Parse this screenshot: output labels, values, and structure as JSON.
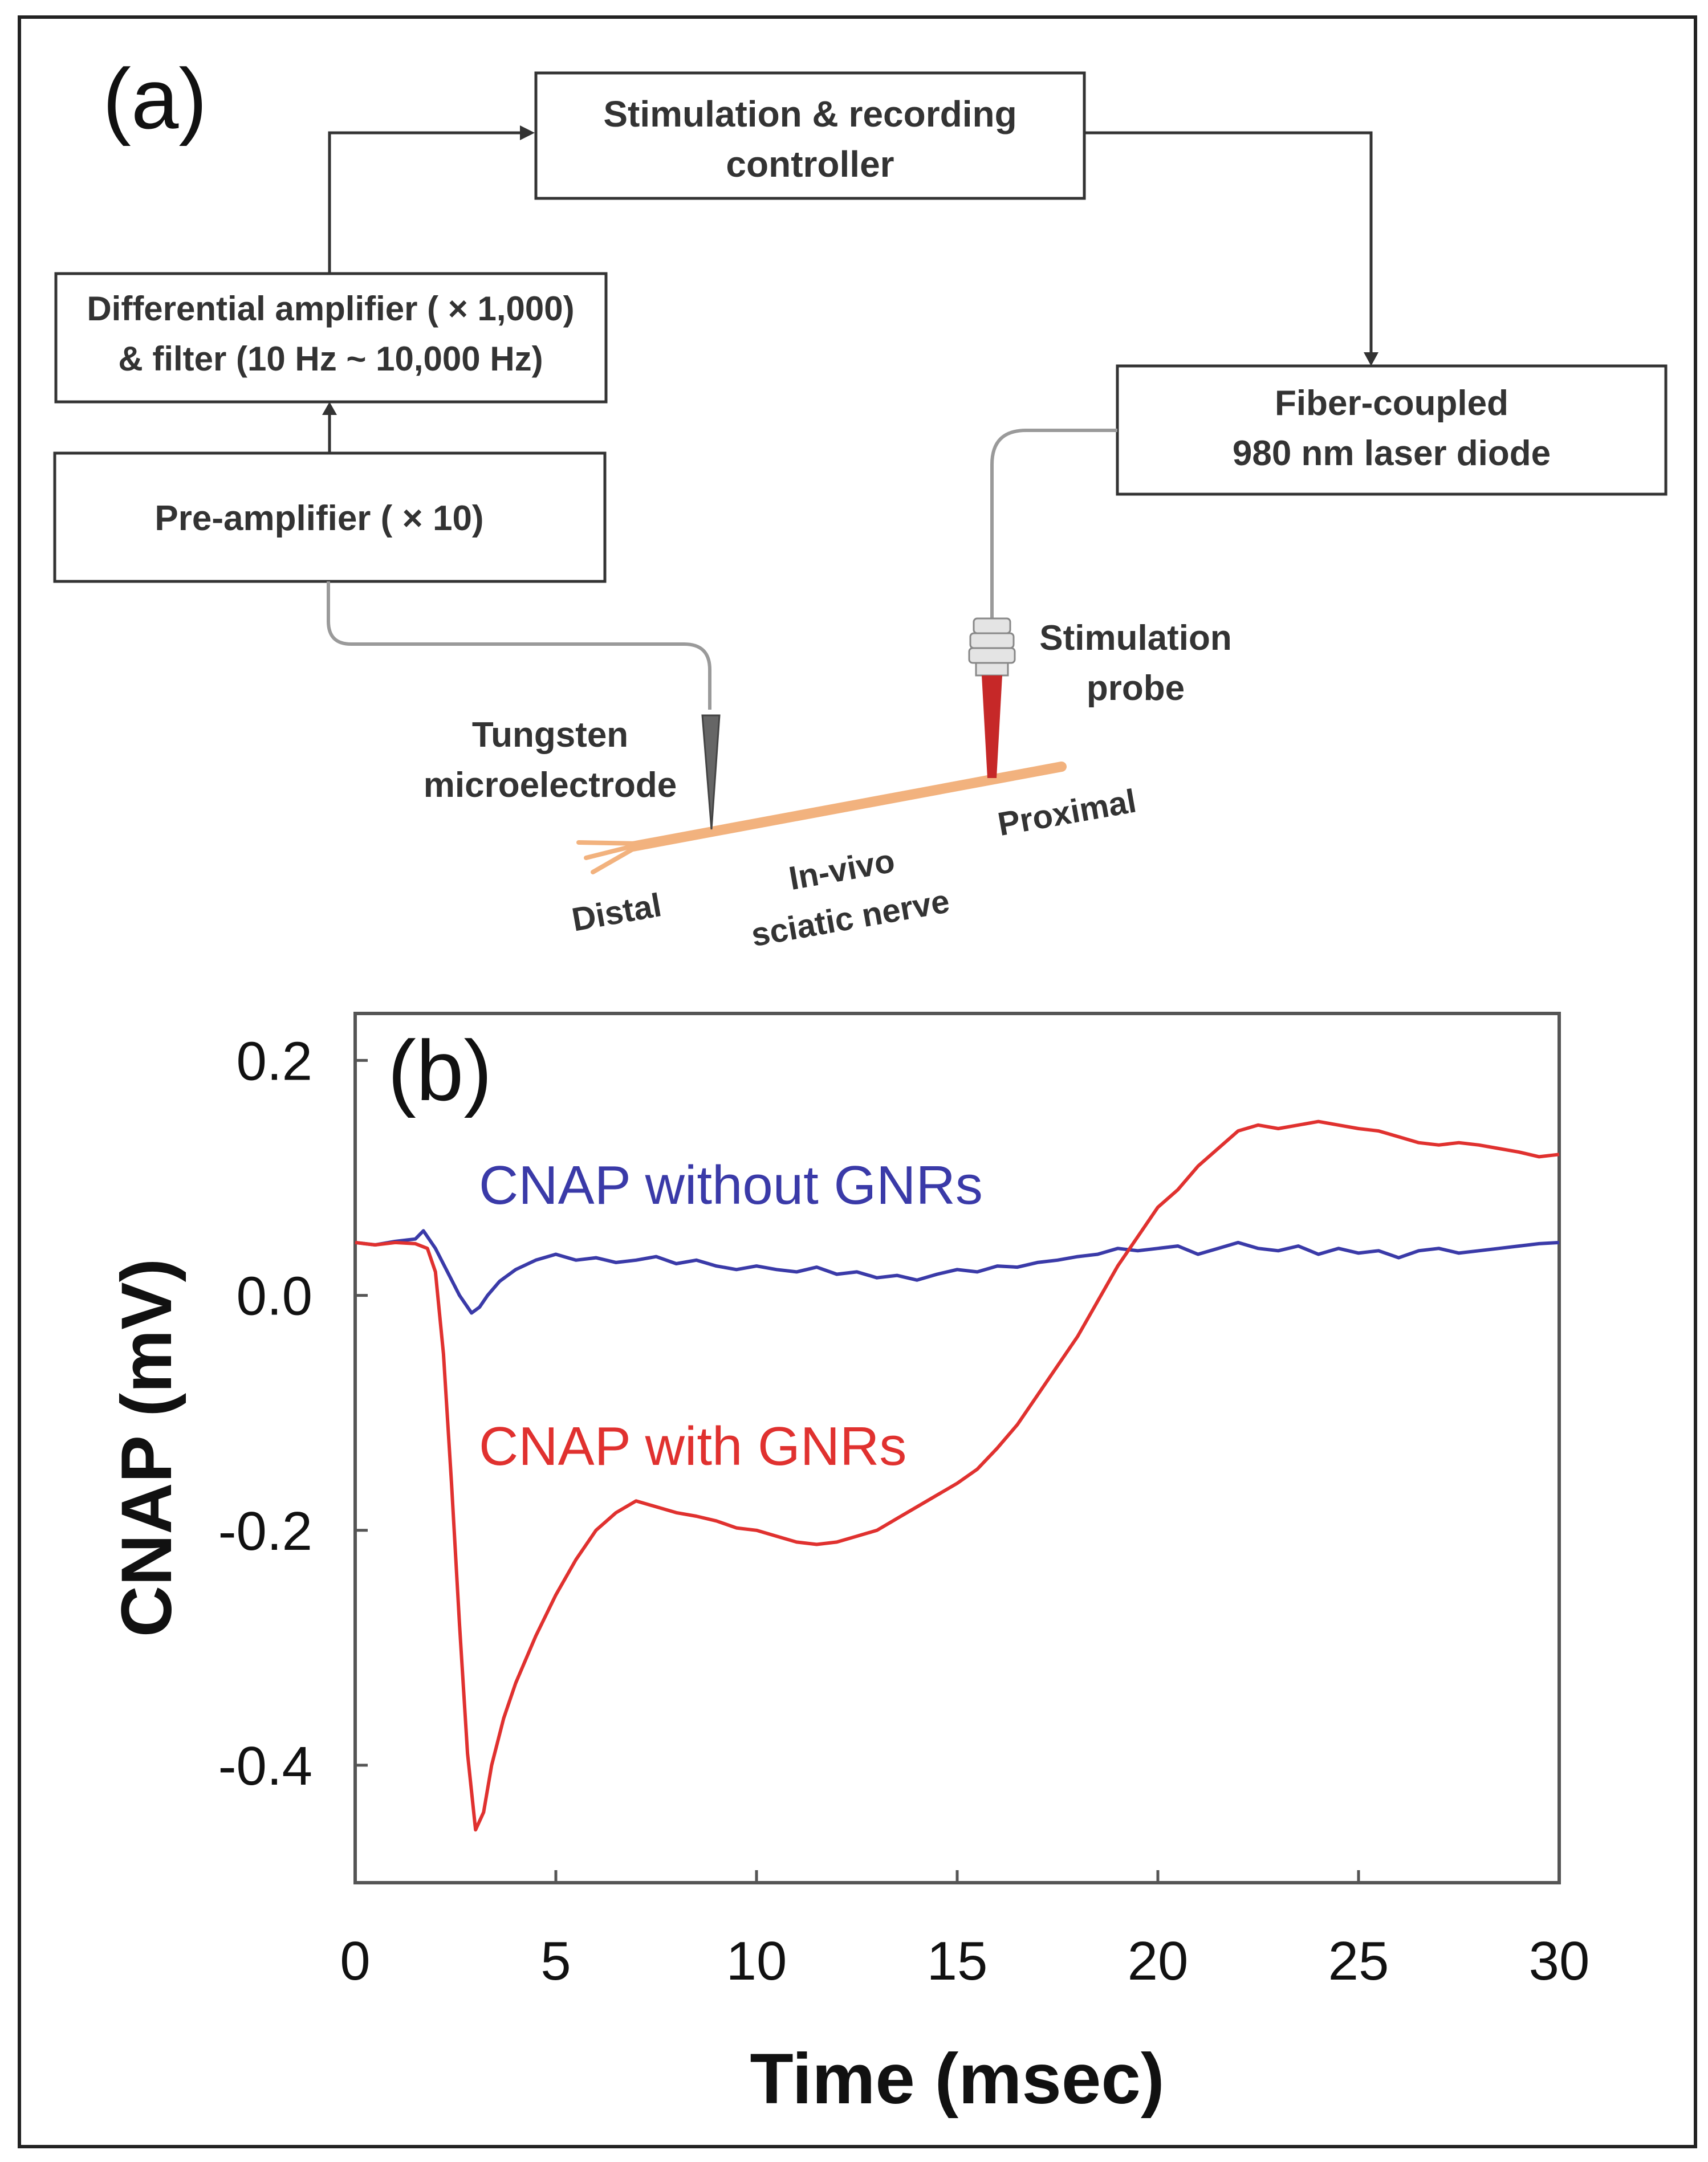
{
  "panel_a": {
    "label": "(a)",
    "controller_line1": "Stimulation & recording",
    "controller_line2": "controller",
    "amplifier_line1": "Differential  amplifier ( × 1,000)",
    "amplifier_line2": "& filter (10 Hz ~ 10,000 Hz)",
    "preamp": "Pre-amplifier ( × 10)",
    "laser_line1": "Fiber-coupled",
    "laser_line2": "980 nm laser diode",
    "probe_line1": "Stimulation",
    "probe_line2": "probe",
    "electrode_line1": "Tungsten",
    "electrode_line2": "microelectrode",
    "nerve_line1": "In-vivo",
    "nerve_line2": "sciatic nerve",
    "distal": "Distal",
    "proximal": "Proximal"
  },
  "panel_b": {
    "label": "(b)"
  },
  "colors": {
    "with_gnrs": "#e0312f",
    "without_gnrs": "#3a3aa8",
    "nerve": "#f2b27e",
    "probe_tip": "#c62828"
  },
  "chart_data": {
    "type": "line",
    "title": "",
    "xlabel": "Time (msec)",
    "ylabel": "CNAP (mV)",
    "xlim": [
      0,
      30
    ],
    "ylim": [
      -0.5,
      0.24
    ],
    "xticks": [
      0,
      5,
      10,
      15,
      20,
      25,
      30
    ],
    "yticks": [
      0.2,
      0.0,
      -0.2,
      -0.4
    ],
    "xtick_labels": [
      "0",
      "5",
      "10",
      "15",
      "20",
      "25",
      "30"
    ],
    "ytick_labels": [
      "0.2",
      "0.0",
      "-0.2",
      "-0.4"
    ],
    "grid": false,
    "series": [
      {
        "name": "CNAP without GNRs",
        "color": "#3a3aa8",
        "x": [
          0,
          0.5,
          1,
          1.5,
          1.7,
          2,
          2.3,
          2.6,
          2.9,
          3.1,
          3.3,
          3.6,
          4,
          4.5,
          5,
          5.5,
          6,
          6.5,
          7,
          7.5,
          8,
          8.5,
          9,
          9.5,
          10,
          10.5,
          11,
          11.5,
          12,
          12.5,
          13,
          13.5,
          14,
          14.5,
          15,
          15.5,
          16,
          16.5,
          17,
          17.5,
          18,
          18.5,
          19,
          19.5,
          20,
          20.5,
          21,
          21.5,
          22,
          22.5,
          23,
          23.5,
          24,
          24.5,
          25,
          25.5,
          26,
          26.5,
          27,
          27.5,
          28,
          28.5,
          29,
          29.5,
          30
        ],
        "y": [
          0.045,
          0.043,
          0.046,
          0.048,
          0.055,
          0.04,
          0.02,
          0.0,
          -0.015,
          -0.01,
          0.0,
          0.012,
          0.022,
          0.03,
          0.035,
          0.03,
          0.032,
          0.028,
          0.03,
          0.033,
          0.027,
          0.03,
          0.025,
          0.022,
          0.025,
          0.022,
          0.02,
          0.024,
          0.018,
          0.02,
          0.015,
          0.017,
          0.013,
          0.018,
          0.022,
          0.02,
          0.025,
          0.024,
          0.028,
          0.03,
          0.033,
          0.035,
          0.04,
          0.038,
          0.04,
          0.042,
          0.035,
          0.04,
          0.045,
          0.04,
          0.038,
          0.042,
          0.035,
          0.04,
          0.036,
          0.038,
          0.032,
          0.038,
          0.04,
          0.036,
          0.038,
          0.04,
          0.042,
          0.044,
          0.045
        ]
      },
      {
        "name": "CNAP with GNRs",
        "color": "#e0312f",
        "x": [
          0,
          0.5,
          1,
          1.5,
          1.8,
          2,
          2.2,
          2.4,
          2.6,
          2.8,
          3.0,
          3.2,
          3.4,
          3.7,
          4,
          4.5,
          5,
          5.5,
          6,
          6.5,
          7,
          7.5,
          8,
          8.5,
          9,
          9.5,
          10,
          10.5,
          11,
          11.5,
          12,
          12.5,
          13,
          13.5,
          14,
          14.5,
          15,
          15.5,
          16,
          16.5,
          17,
          17.5,
          18,
          18.5,
          19,
          19.5,
          20,
          20.5,
          21,
          21.5,
          22,
          22.5,
          23,
          23.5,
          24,
          24.5,
          25,
          25.5,
          26,
          26.5,
          27,
          27.5,
          28,
          28.5,
          29,
          29.5,
          30
        ],
        "y": [
          0.045,
          0.043,
          0.045,
          0.044,
          0.04,
          0.02,
          -0.05,
          -0.16,
          -0.28,
          -0.39,
          -0.455,
          -0.44,
          -0.4,
          -0.36,
          -0.33,
          -0.29,
          -0.255,
          -0.225,
          -0.2,
          -0.185,
          -0.175,
          -0.18,
          -0.185,
          -0.188,
          -0.192,
          -0.198,
          -0.2,
          -0.205,
          -0.21,
          -0.212,
          -0.21,
          -0.205,
          -0.2,
          -0.19,
          -0.18,
          -0.17,
          -0.16,
          -0.148,
          -0.13,
          -0.11,
          -0.085,
          -0.06,
          -0.035,
          -0.005,
          0.025,
          0.05,
          0.075,
          0.09,
          0.11,
          0.125,
          0.14,
          0.145,
          0.142,
          0.145,
          0.148,
          0.145,
          0.142,
          0.14,
          0.135,
          0.13,
          0.128,
          0.13,
          0.128,
          0.125,
          0.122,
          0.118,
          0.12
        ]
      }
    ],
    "annotations": [
      {
        "text": "CNAP without GNRs",
        "series": "CNAP without GNRs"
      },
      {
        "text": "CNAP with GNRs",
        "series": "CNAP with GNRs"
      }
    ]
  }
}
